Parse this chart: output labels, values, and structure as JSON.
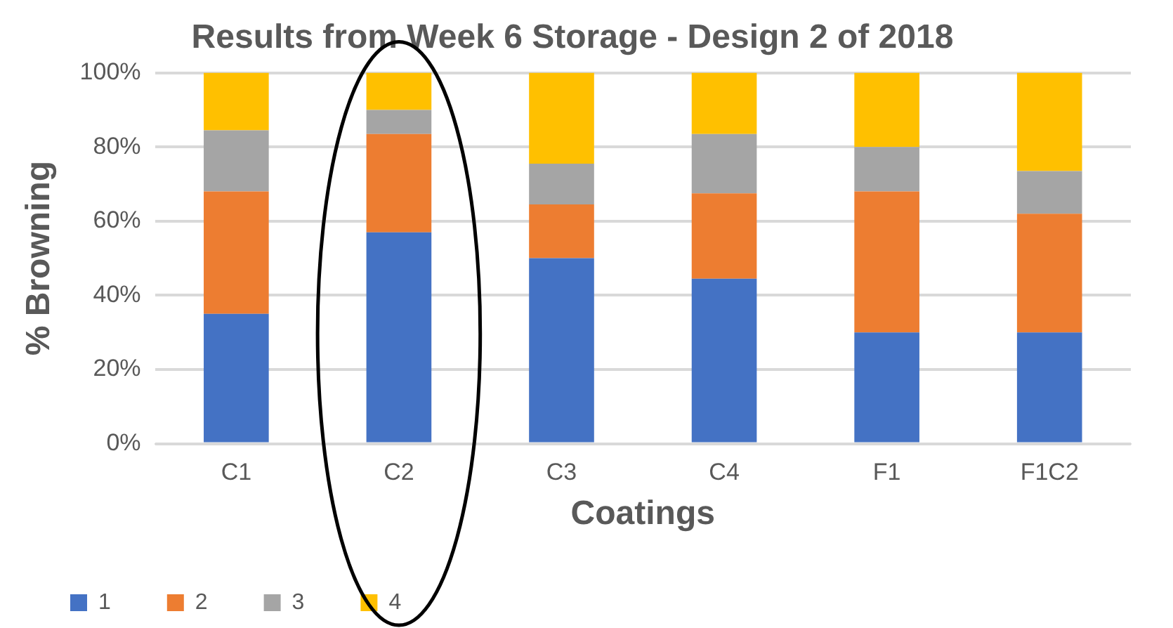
{
  "chart_data": {
    "type": "bar",
    "title": "Results from Week 6 Storage - Design 2 of 2018",
    "xlabel": "Coatings",
    "ylabel": "% Browning",
    "categories": [
      "C1",
      "C2",
      "C3",
      "C4",
      "F1",
      "F1C2"
    ],
    "stacked": true,
    "series": [
      {
        "name": "1",
        "color": "#4472c4",
        "values": [
          35,
          57,
          50,
          44.5,
          30,
          30
        ]
      },
      {
        "name": "2",
        "color": "#ed7d31",
        "values": [
          33,
          26.5,
          14.5,
          23,
          38,
          32
        ]
      },
      {
        "name": "3",
        "color": "#a5a5a5",
        "values": [
          16.5,
          6.5,
          11,
          16,
          12,
          11.5
        ]
      },
      {
        "name": "4",
        "color": "#ffc000",
        "values": [
          15.5,
          10,
          24.5,
          16.5,
          20,
          26.5
        ]
      }
    ],
    "ylim": [
      0,
      100
    ],
    "yticks": [
      {
        "value": 0,
        "label": "0%"
      },
      {
        "value": 20,
        "label": "20%"
      },
      {
        "value": 40,
        "label": "40%"
      },
      {
        "value": 60,
        "label": "60%"
      },
      {
        "value": 80,
        "label": "80%"
      },
      {
        "value": 100,
        "label": "100%"
      }
    ],
    "grid": "y",
    "legend": "bottom left"
  }
}
